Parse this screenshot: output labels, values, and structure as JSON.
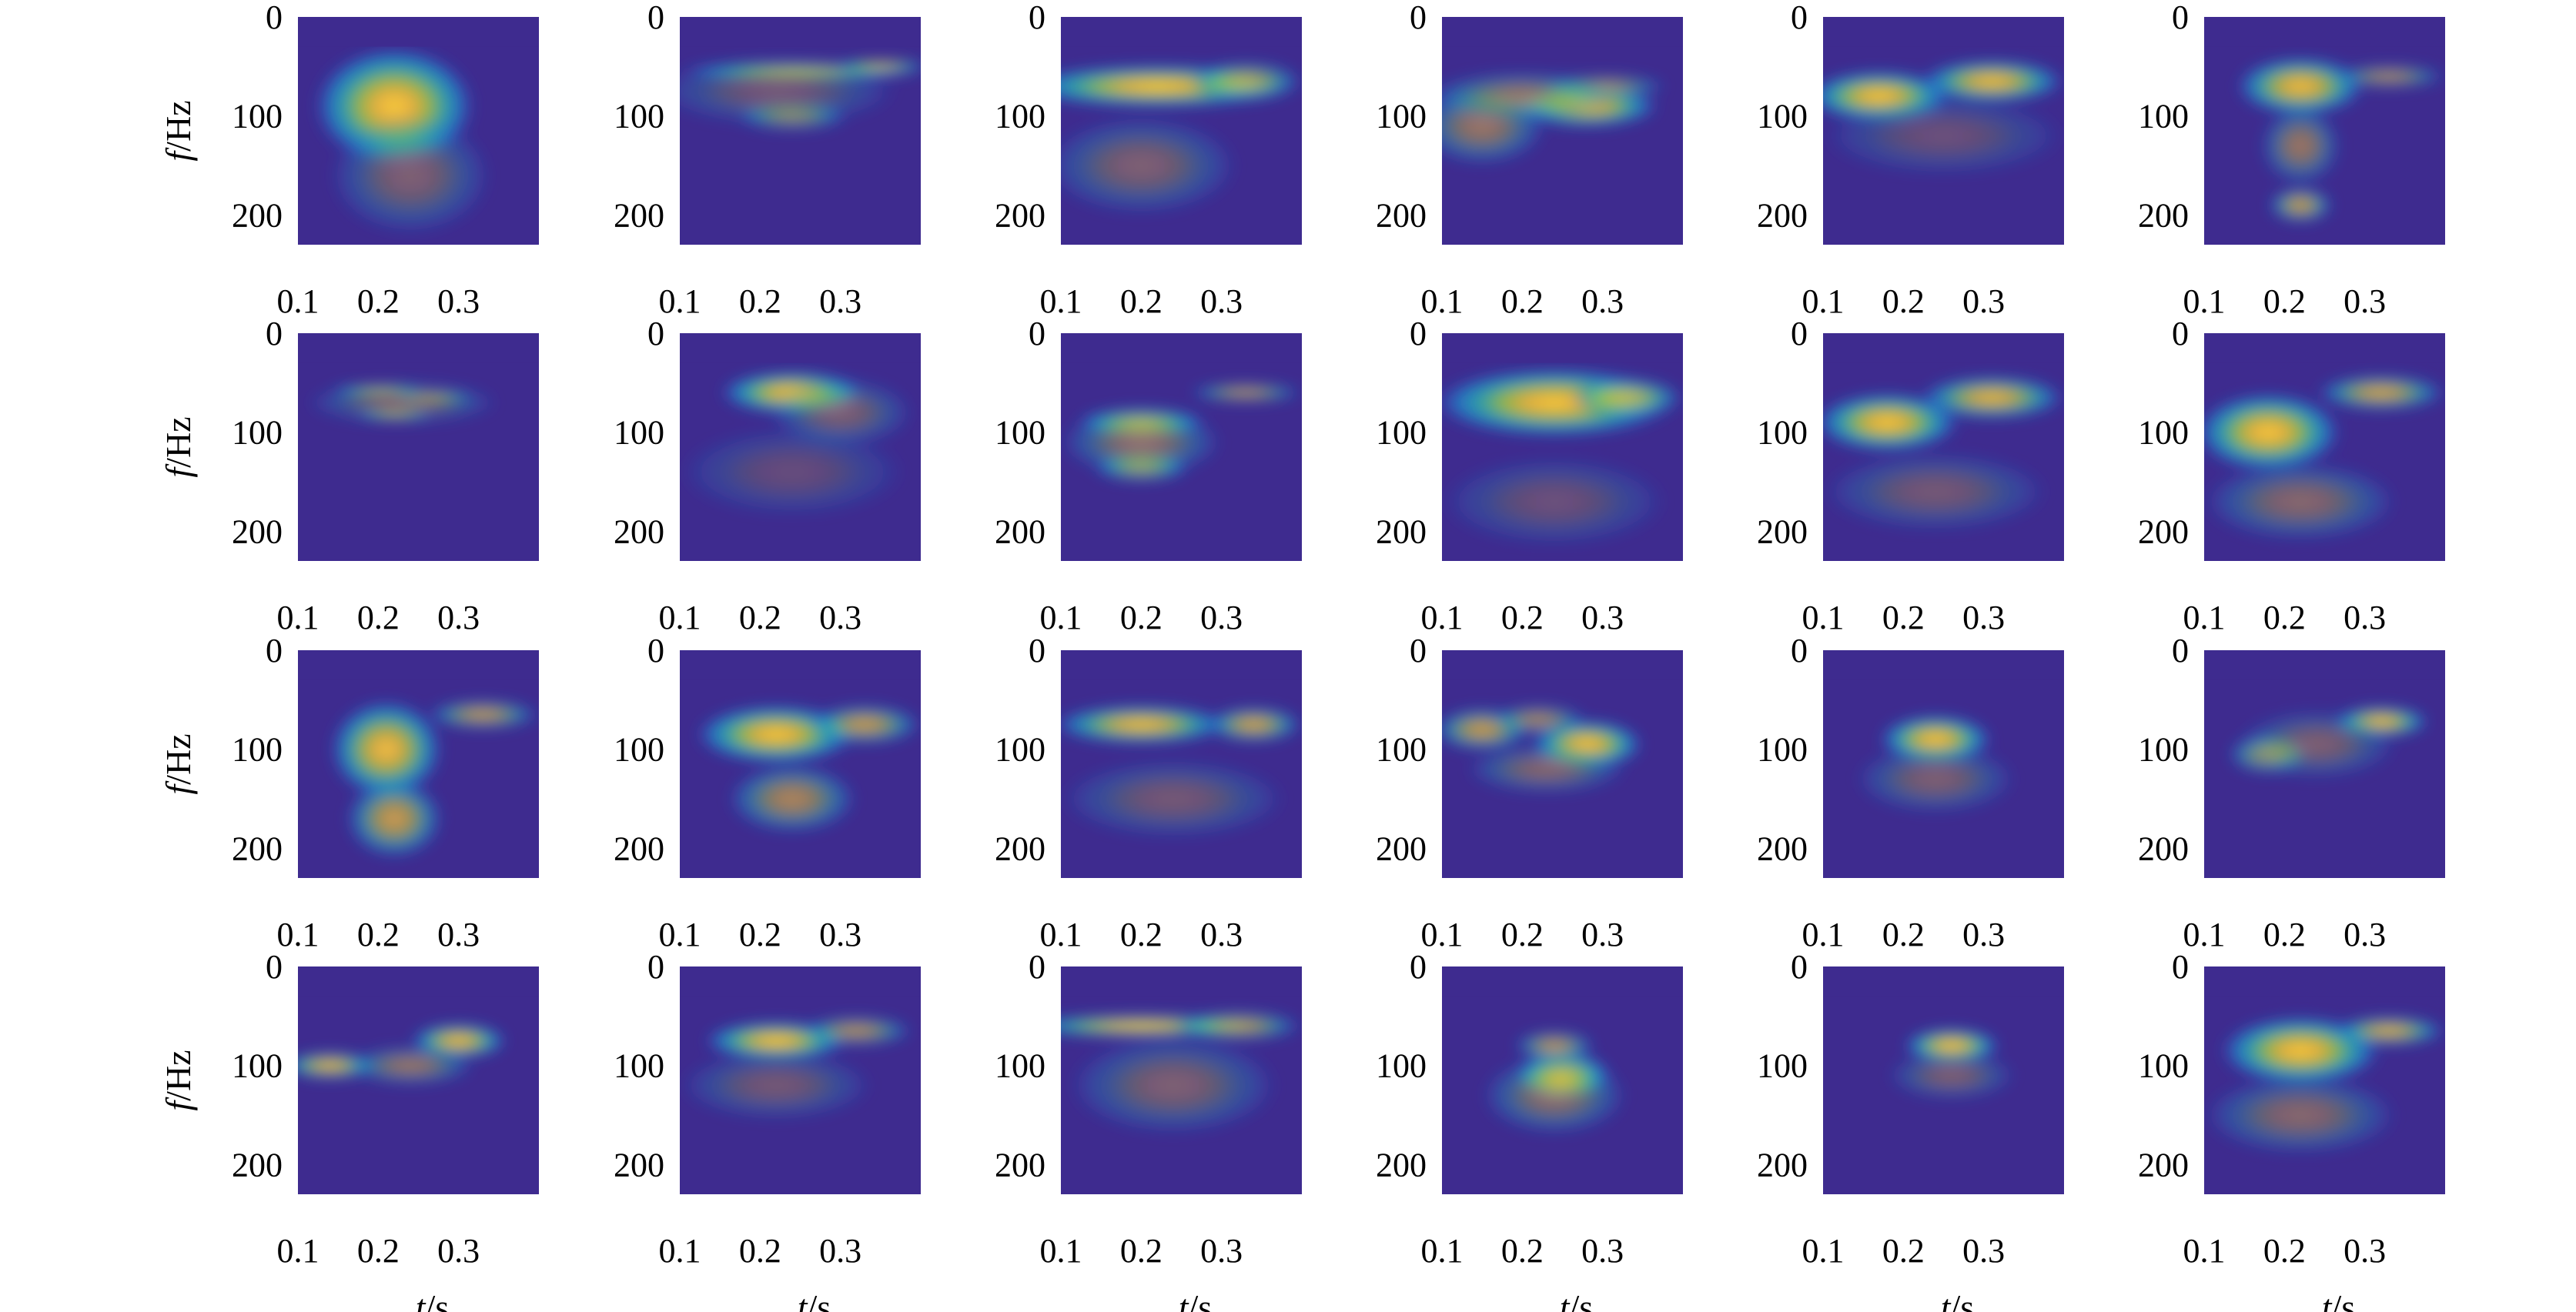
{
  "chart_data": {
    "type": "heatmap",
    "grid": {
      "rows": 4,
      "cols": 6
    },
    "xlabel": {
      "var": "t",
      "unit": "/s"
    },
    "ylabel": {
      "var": "f",
      "unit": "/Hz"
    },
    "xlim": [
      0.1,
      0.4
    ],
    "ylim": [
      0,
      230
    ],
    "xticks": [
      0.1,
      0.2,
      0.3
    ],
    "xtick_labels": [
      "0.1",
      "0.2",
      "0.3"
    ],
    "yticks": [
      0,
      100,
      200
    ],
    "ytick_labels": [
      "0",
      "100",
      "200"
    ],
    "ylabel_on_columns": [
      0
    ],
    "xlabel_on_rows": [
      3
    ],
    "colormap": [
      "#3e2b8f",
      "#2a57d4",
      "#1d93d6",
      "#2bc0a8",
      "#9ccc3c",
      "#f5b83a",
      "#f9d23a"
    ],
    "blank_band_hz": 30,
    "panels": [
      {
        "blobs": [
          [
            0.22,
            90,
            0.1,
            60,
            1.0
          ],
          [
            0.24,
            160,
            0.1,
            60,
            0.35
          ]
        ]
      },
      {
        "blobs": [
          [
            0.25,
            55,
            0.15,
            10,
            0.85
          ],
          [
            0.35,
            50,
            0.06,
            8,
            0.75
          ],
          [
            0.24,
            100,
            0.07,
            15,
            0.6
          ],
          [
            0.22,
            75,
            0.15,
            35,
            0.3
          ]
        ]
      },
      {
        "blobs": [
          [
            0.22,
            70,
            0.17,
            22,
            1.0
          ],
          [
            0.33,
            65,
            0.07,
            20,
            0.7
          ],
          [
            0.2,
            150,
            0.12,
            50,
            0.35
          ]
        ]
      },
      {
        "blobs": [
          [
            0.28,
            90,
            0.09,
            22,
            0.95
          ],
          [
            0.3,
            70,
            0.08,
            12,
            0.6
          ],
          [
            0.15,
            110,
            0.08,
            40,
            0.5
          ],
          [
            0.2,
            80,
            0.12,
            25,
            0.5
          ]
        ]
      },
      {
        "blobs": [
          [
            0.17,
            80,
            0.09,
            26,
            1.0
          ],
          [
            0.31,
            65,
            0.09,
            22,
            0.95
          ],
          [
            0.25,
            120,
            0.15,
            40,
            0.25
          ]
        ]
      },
      {
        "blobs": [
          [
            0.22,
            70,
            0.08,
            30,
            0.95
          ],
          [
            0.22,
            190,
            0.04,
            18,
            0.75
          ],
          [
            0.22,
            130,
            0.05,
            40,
            0.5
          ],
          [
            0.33,
            60,
            0.07,
            12,
            0.6
          ]
        ]
      },
      {
        "blobs": [
          [
            0.2,
            58,
            0.06,
            6,
            0.85
          ],
          [
            0.22,
            82,
            0.05,
            6,
            0.8
          ],
          [
            0.27,
            65,
            0.05,
            6,
            0.7
          ],
          [
            0.23,
            70,
            0.12,
            22,
            0.35
          ]
        ]
      },
      {
        "blobs": [
          [
            0.24,
            60,
            0.09,
            22,
            1.0
          ],
          [
            0.3,
            80,
            0.09,
            35,
            0.35
          ],
          [
            0.24,
            140,
            0.14,
            45,
            0.22
          ]
        ]
      },
      {
        "blobs": [
          [
            0.2,
            90,
            0.08,
            15,
            0.9
          ],
          [
            0.2,
            135,
            0.06,
            15,
            0.8
          ],
          [
            0.33,
            60,
            0.07,
            10,
            0.65
          ],
          [
            0.2,
            110,
            0.1,
            35,
            0.45
          ]
        ]
      },
      {
        "blobs": [
          [
            0.24,
            70,
            0.15,
            35,
            1.0
          ],
          [
            0.33,
            65,
            0.07,
            20,
            0.75
          ],
          [
            0.24,
            170,
            0.14,
            45,
            0.25
          ]
        ]
      },
      {
        "blobs": [
          [
            0.18,
            90,
            0.09,
            30,
            1.0
          ],
          [
            0.31,
            65,
            0.09,
            22,
            0.9
          ],
          [
            0.24,
            160,
            0.14,
            40,
            0.3
          ]
        ]
      },
      {
        "blobs": [
          [
            0.18,
            100,
            0.09,
            40,
            1.0
          ],
          [
            0.32,
            60,
            0.08,
            18,
            0.8
          ],
          [
            0.22,
            170,
            0.12,
            40,
            0.4
          ]
        ]
      },
      {
        "blobs": [
          [
            0.21,
            100,
            0.07,
            50,
            0.95
          ],
          [
            0.22,
            170,
            0.06,
            40,
            0.75
          ],
          [
            0.33,
            65,
            0.07,
            15,
            0.7
          ]
        ]
      },
      {
        "blobs": [
          [
            0.22,
            85,
            0.1,
            30,
            1.0
          ],
          [
            0.33,
            75,
            0.07,
            20,
            0.75
          ],
          [
            0.24,
            150,
            0.08,
            35,
            0.6
          ]
        ]
      },
      {
        "blobs": [
          [
            0.2,
            75,
            0.11,
            20,
            0.95
          ],
          [
            0.34,
            75,
            0.06,
            18,
            0.8
          ],
          [
            0.24,
            150,
            0.14,
            40,
            0.3
          ]
        ]
      },
      {
        "blobs": [
          [
            0.28,
            95,
            0.07,
            25,
            1.0
          ],
          [
            0.15,
            80,
            0.06,
            22,
            0.75
          ],
          [
            0.22,
            70,
            0.06,
            15,
            0.6
          ],
          [
            0.23,
            120,
            0.1,
            25,
            0.4
          ]
        ]
      },
      {
        "blobs": [
          [
            0.24,
            90,
            0.07,
            25,
            1.0
          ],
          [
            0.24,
            130,
            0.1,
            35,
            0.35
          ]
        ]
      },
      {
        "blobs": [
          [
            0.32,
            72,
            0.06,
            16,
            0.95
          ],
          [
            0.18,
            105,
            0.05,
            20,
            0.7
          ],
          [
            0.24,
            95,
            0.1,
            35,
            0.35
          ]
        ]
      },
      {
        "blobs": [
          [
            0.14,
            100,
            0.06,
            14,
            0.9
          ],
          [
            0.3,
            75,
            0.06,
            18,
            0.95
          ],
          [
            0.24,
            100,
            0.08,
            20,
            0.5
          ]
        ]
      },
      {
        "blobs": [
          [
            0.22,
            75,
            0.09,
            20,
            1.0
          ],
          [
            0.32,
            65,
            0.07,
            15,
            0.65
          ],
          [
            0.22,
            120,
            0.12,
            35,
            0.3
          ]
        ]
      },
      {
        "blobs": [
          [
            0.2,
            60,
            0.15,
            12,
            0.95
          ],
          [
            0.32,
            60,
            0.08,
            15,
            0.7
          ],
          [
            0.24,
            120,
            0.13,
            50,
            0.35
          ]
        ]
      },
      {
        "blobs": [
          [
            0.25,
            110,
            0.06,
            25,
            1.0
          ],
          [
            0.24,
            80,
            0.05,
            15,
            0.7
          ],
          [
            0.24,
            130,
            0.09,
            40,
            0.45
          ]
        ]
      },
      {
        "blobs": [
          [
            0.26,
            80,
            0.06,
            18,
            1.0
          ],
          [
            0.26,
            110,
            0.08,
            25,
            0.35
          ]
        ]
      },
      {
        "blobs": [
          [
            0.22,
            85,
            0.1,
            35,
            1.0
          ],
          [
            0.33,
            65,
            0.07,
            15,
            0.85
          ],
          [
            0.22,
            150,
            0.12,
            40,
            0.4
          ]
        ]
      }
    ]
  }
}
